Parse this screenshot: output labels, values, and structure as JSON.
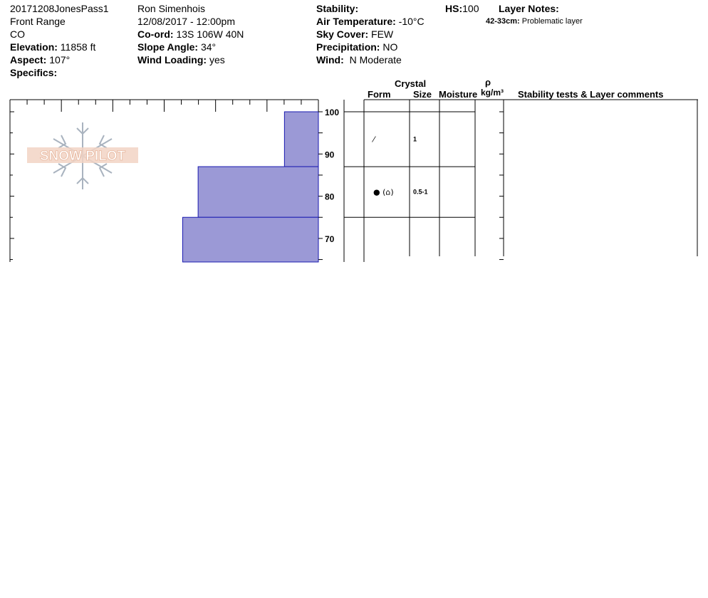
{
  "header": {
    "col1": {
      "name": "20171208JonesPass1",
      "range": "Front Range",
      "state": "CO",
      "elevation_label": "Elevation:",
      "elevation_value": "11858 ft",
      "aspect_label": "Aspect:",
      "aspect_value": "107°",
      "specifics_label": "Specifics:"
    },
    "col2": {
      "observer": "Ron Simenhois",
      "datetime": "12/08/2017 - 12:00pm",
      "coord_label": "Co-ord:",
      "coord_value": "13S 106W 40N",
      "slope_label": "Slope Angle:",
      "slope_value": "34°",
      "wind_loading_label": "Wind Loading:",
      "wind_loading_value": "yes"
    },
    "col3": {
      "stability_label": "Stability:",
      "air_temp_label": "Air Temperature:",
      "air_temp_value": "-10°C",
      "sky_label": "Sky Cover:",
      "sky_value": "FEW",
      "precip_label": "Precipitation:",
      "precip_value": "NO",
      "wind_label": "Wind:",
      "wind_value": "N Moderate"
    },
    "col4": {
      "hs_label": "HS:",
      "hs_value": "100",
      "layer_notes_label": "Layer Notes:",
      "note_depth": "42-33cm:",
      "note_text": "Problematic layer"
    }
  },
  "logo": {
    "text": "SNOW PILOT"
  },
  "table_headers": {
    "crystal": "Crystal",
    "form": "Form",
    "size": "Size",
    "moisture": "Moisture",
    "rho": "ρ",
    "density_unit": "kg/m³",
    "comments": "Stability tests & Layer comments"
  },
  "layers": [
    {
      "top": 100,
      "bottom": 87,
      "form_symbol": "⁄",
      "size": "1"
    },
    {
      "top": 87,
      "bottom": 75,
      "form_symbol": "● (⌂)",
      "size": "0.5-1"
    }
  ],
  "colors": {
    "bar_fill": "#9b99d6",
    "bar_stroke": "#1a1ab0"
  },
  "chart_data": {
    "type": "bar",
    "orientation": "horizontal",
    "ylabel": "",
    "xlabel": "",
    "ylim": [
      61,
      103
    ],
    "y_ticks": [
      100,
      90,
      80,
      70
    ],
    "bars": [
      {
        "top": 100,
        "bottom": 87,
        "hardness_fraction": 0.11
      },
      {
        "top": 87,
        "bottom": 75,
        "hardness_fraction": 0.39
      },
      {
        "top": 75,
        "bottom": 61,
        "hardness_fraction": 0.44
      }
    ]
  }
}
